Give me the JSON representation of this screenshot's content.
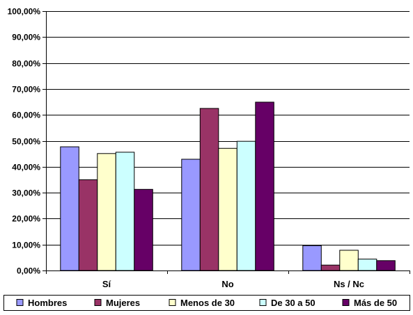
{
  "chart_data": {
    "type": "bar",
    "categories": [
      "Sí",
      "No",
      "Ns / Nc"
    ],
    "ylim": [
      0,
      100
    ],
    "ytick_step": 10,
    "ytick_format": "percent-2dec-comma",
    "grid": true,
    "legend_position": "bottom",
    "series": [
      {
        "name": "Hombres",
        "color": "#9999ff",
        "values": [
          47.7,
          42.9,
          9.6
        ]
      },
      {
        "name": "Mujeres",
        "color": "#993366",
        "values": [
          35.0,
          62.5,
          2.1
        ]
      },
      {
        "name": "Menos de 30",
        "color": "#ffffcc",
        "values": [
          45.1,
          47.1,
          7.8
        ]
      },
      {
        "name": "De 30 a 50",
        "color": "#ccffff",
        "values": [
          45.6,
          49.8,
          4.4
        ]
      },
      {
        "name": "Más de 50",
        "color": "#660066",
        "values": [
          31.3,
          64.9,
          3.8
        ]
      }
    ]
  }
}
